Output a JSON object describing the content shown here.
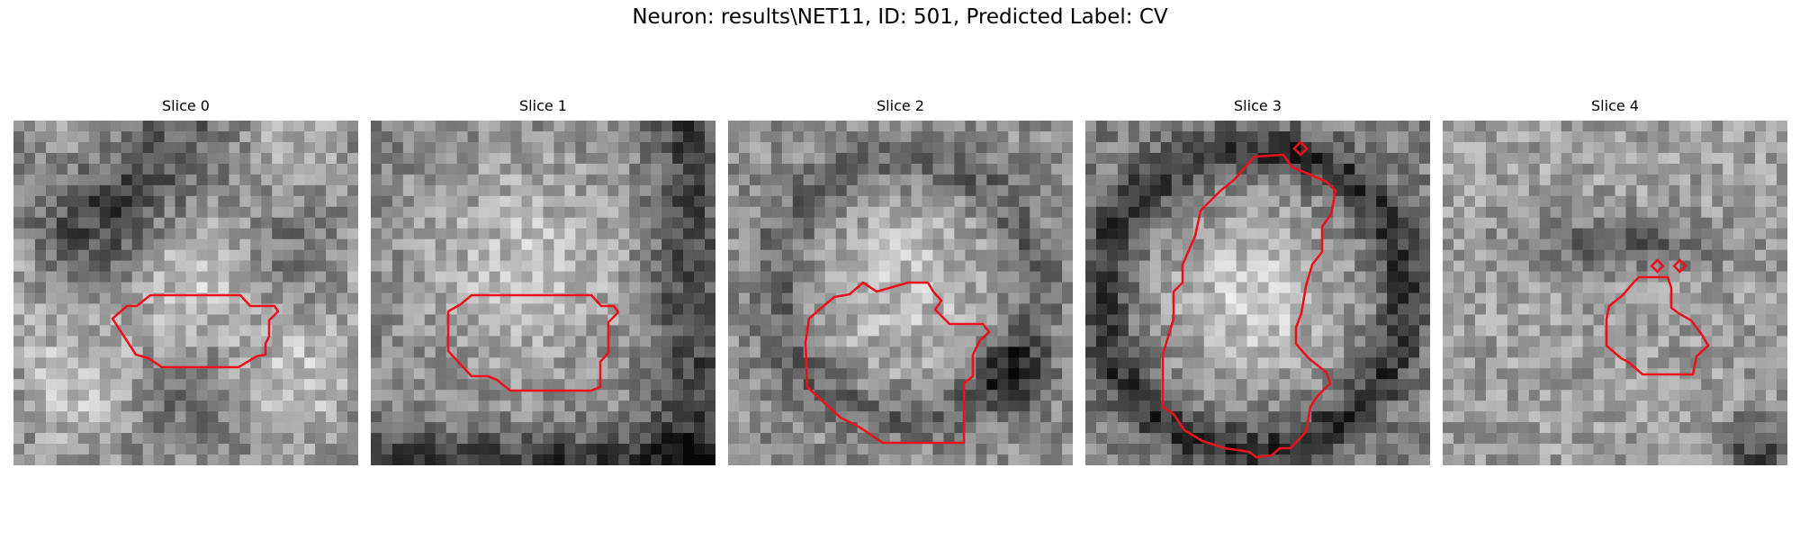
{
  "figure": {
    "title": "Neuron: results\\NET11, ID: 501, Predicted Label: CV",
    "contour_color": "#e8141b",
    "panels": [
      {
        "title": "Slice 0"
      },
      {
        "title": "Slice 1"
      },
      {
        "title": "Slice 2"
      },
      {
        "title": "Slice 3"
      },
      {
        "title": "Slice 4"
      }
    ]
  }
}
